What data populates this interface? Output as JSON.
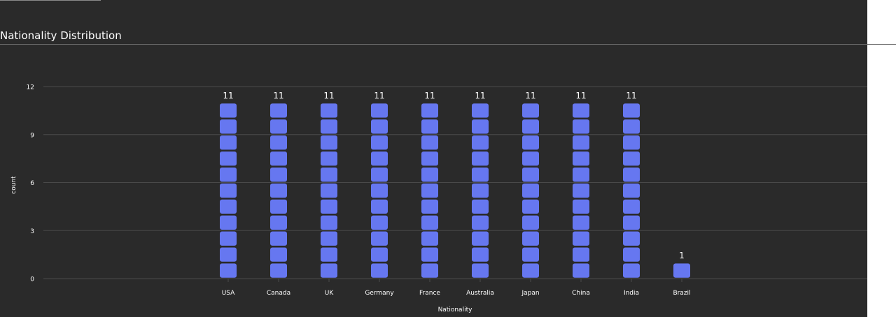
{
  "page": {
    "title": "Nationality Distribution"
  },
  "chart_data": {
    "type": "bar",
    "style": "unit-pictogram",
    "categories": [
      "USA",
      "Canada",
      "UK",
      "Germany",
      "France",
      "Australia",
      "Japan",
      "China",
      "India",
      "Brazil"
    ],
    "values": [
      11,
      11,
      11,
      11,
      11,
      11,
      11,
      11,
      11,
      1
    ],
    "xlabel": "Nationality",
    "ylabel": "count",
    "ylim": [
      0,
      12
    ],
    "yticks": [
      0,
      3,
      6,
      9,
      12
    ],
    "grid": true,
    "legend": "none",
    "colors": {
      "bar": "#6677f0",
      "background": "#2a2a2a",
      "grid": "#4a4a4a",
      "text": "#ffffff"
    }
  }
}
